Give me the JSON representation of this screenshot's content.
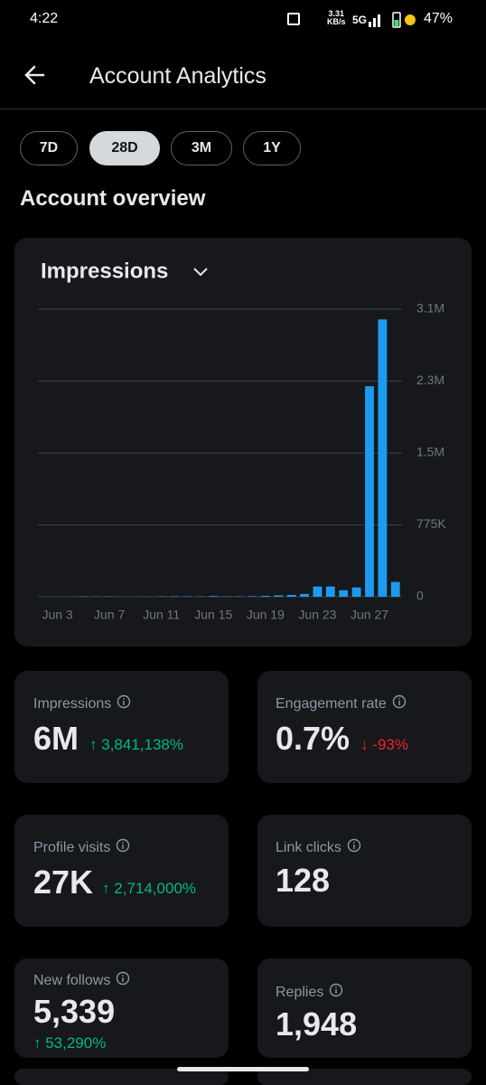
{
  "status_bar": {
    "time": "4:22",
    "speed": "3.31",
    "speed_unit": "KB/s",
    "network": "5G",
    "battery": "47%"
  },
  "header": {
    "title": "Account Analytics"
  },
  "tabs": [
    "7D",
    "28D",
    "3M",
    "1Y"
  ],
  "section_title": "Account overview",
  "chart_data": {
    "type": "bar",
    "title": "Impressions",
    "color": "#1d9bf0",
    "grid": true,
    "categories": [
      null,
      "Jun 3",
      null,
      null,
      null,
      "Jun 7",
      null,
      null,
      null,
      "Jun 11",
      null,
      null,
      null,
      "Jun 15",
      null,
      null,
      null,
      "Jun 19",
      null,
      null,
      null,
      "Jun 23",
      null,
      null,
      null,
      "Jun 27",
      null,
      null
    ],
    "values": [
      0,
      0,
      0,
      3000,
      3000,
      3000,
      0,
      0,
      2000,
      4000,
      5000,
      5000,
      4000,
      8000,
      4000,
      4000,
      6000,
      10000,
      15000,
      20000,
      30000,
      110000,
      110000,
      70000,
      100000,
      2270000,
      2990000,
      160000
    ],
    "ylim": [
      0,
      3100000
    ],
    "yticks": [
      0,
      {
        "value": 775000,
        "label": "775K"
      },
      {
        "value": 1550000,
        "label": "1.5M"
      },
      {
        "value": 2325000,
        "label": "2.3M"
      },
      {
        "value": 3100000,
        "label": "3.1M"
      }
    ]
  },
  "metrics": [
    {
      "label": "Impressions",
      "value": "6M",
      "change": "↑ 3,841,138%",
      "change_color": "#00ba7c"
    },
    {
      "label": "Engagement rate",
      "value": "0.7%",
      "change": "↓ -93%",
      "change_color": "#f4212e"
    },
    {
      "label": "Profile visits",
      "value": "27K",
      "change": "↑ 2,714,000%",
      "change_color": "#00ba7c"
    },
    {
      "label": "Link clicks",
      "value": "128"
    },
    {
      "label": "New follows",
      "value": "5,339",
      "change": "↑ 53,290%",
      "change_color": "#00ba7c"
    },
    {
      "label": "Replies",
      "value": "1,948"
    }
  ]
}
